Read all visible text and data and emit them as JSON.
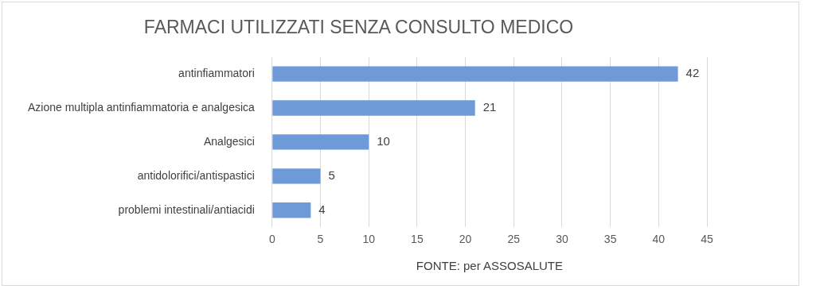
{
  "chart_data": {
    "type": "bar",
    "orientation": "horizontal",
    "title": "FARMACI UTILIZZATI SENZA CONSULTO MEDICO",
    "xlabel": "FONTE: per ASSOSALUTE",
    "categories": [
      "antinfiammatori",
      "Azione multipla antinfiammatoria e analgesica",
      "Analgesici",
      "antidolorifici/antispastici",
      "problemi intestinali/antiacidi"
    ],
    "values": [
      42,
      21,
      10,
      5,
      4
    ],
    "color": "#6f9ad8",
    "xlim": [
      0,
      45
    ],
    "xticks": [
      0,
      5,
      10,
      15,
      20,
      25,
      30,
      35,
      40,
      45
    ],
    "grid": "x",
    "data_labels": true,
    "legend": false
  }
}
